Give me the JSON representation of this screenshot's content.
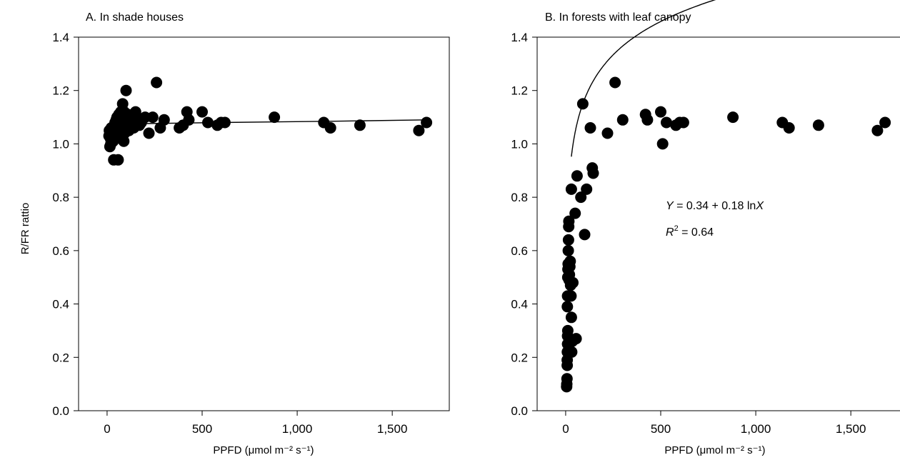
{
  "figure": {
    "ylabel": "R/FR rattio"
  },
  "chart_data": [
    {
      "type": "scatter",
      "title": "A. In shade houses",
      "xlabel": "PPFD (μmol m⁻² s⁻¹)",
      "ylabel": "R/FR rattio",
      "xlim": [
        -150,
        1800
      ],
      "ylim": [
        0,
        1.4
      ],
      "x_ticks": [
        "0",
        "500",
        "1,000",
        "1,500"
      ],
      "y_ticks": [
        "0.0",
        "0.2",
        "0.4",
        "0.6",
        "0.8",
        "1.0",
        "1.2",
        "1.4"
      ],
      "x_tick_values": [
        0,
        500,
        1000,
        1500
      ],
      "y_tick_values": [
        0,
        0.2,
        0.4,
        0.6,
        0.8,
        1.0,
        1.2,
        1.4
      ],
      "grid": false,
      "fit_line": [
        [
          5,
          1.04
        ],
        [
          60,
          1.07
        ],
        [
          200,
          1.076
        ],
        [
          600,
          1.08
        ],
        [
          1200,
          1.085
        ],
        [
          1680,
          1.09
        ]
      ],
      "points": [
        [
          10,
          1.03
        ],
        [
          12,
          1.05
        ],
        [
          15,
          0.99
        ],
        [
          18,
          1.02
        ],
        [
          20,
          1.0
        ],
        [
          22,
          1.06
        ],
        [
          25,
          1.03
        ],
        [
          28,
          1.04
        ],
        [
          30,
          1.05
        ],
        [
          32,
          1.01
        ],
        [
          35,
          0.94
        ],
        [
          38,
          1.07
        ],
        [
          40,
          1.03
        ],
        [
          42,
          1.08
        ],
        [
          45,
          1.02
        ],
        [
          48,
          1.09
        ],
        [
          50,
          1.05
        ],
        [
          52,
          1.1
        ],
        [
          55,
          1.04
        ],
        [
          58,
          0.94
        ],
        [
          60,
          1.06
        ],
        [
          62,
          1.11
        ],
        [
          65,
          1.07
        ],
        [
          68,
          1.03
        ],
        [
          70,
          1.09
        ],
        [
          72,
          1.12
        ],
        [
          75,
          1.05
        ],
        [
          78,
          1.08
        ],
        [
          80,
          1.1
        ],
        [
          82,
          1.15
        ],
        [
          85,
          1.06
        ],
        [
          88,
          1.01
        ],
        [
          90,
          1.12
        ],
        [
          92,
          1.04
        ],
        [
          95,
          1.09
        ],
        [
          100,
          1.2
        ],
        [
          105,
          1.07
        ],
        [
          110,
          1.11
        ],
        [
          115,
          1.05
        ],
        [
          120,
          1.1
        ],
        [
          130,
          1.08
        ],
        [
          140,
          1.06
        ],
        [
          150,
          1.12
        ],
        [
          160,
          1.09
        ],
        [
          170,
          1.07
        ],
        [
          180,
          1.08
        ],
        [
          200,
          1.1
        ],
        [
          220,
          1.04
        ],
        [
          240,
          1.1
        ],
        [
          260,
          1.23
        ],
        [
          280,
          1.06
        ],
        [
          300,
          1.09
        ],
        [
          380,
          1.06
        ],
        [
          400,
          1.07
        ],
        [
          420,
          1.12
        ],
        [
          430,
          1.09
        ],
        [
          500,
          1.12
        ],
        [
          530,
          1.08
        ],
        [
          580,
          1.07
        ],
        [
          600,
          1.08
        ],
        [
          620,
          1.08
        ],
        [
          880,
          1.1
        ],
        [
          1140,
          1.08
        ],
        [
          1175,
          1.06
        ],
        [
          1330,
          1.07
        ],
        [
          1640,
          1.05
        ],
        [
          1680,
          1.08
        ]
      ]
    },
    {
      "type": "scatter",
      "title": "B. In forests with leaf canopy",
      "xlabel": "PPFD (μmol m⁻² s⁻¹)",
      "xlim": [
        -150,
        1800
      ],
      "ylim": [
        0,
        1.4
      ],
      "x_ticks": [
        "0",
        "500",
        "1,000",
        "1,500"
      ],
      "y_ticks": [
        "0.0",
        "0.2",
        "0.4",
        "0.6",
        "0.8",
        "1.0",
        "1.2",
        "1.4"
      ],
      "x_tick_values": [
        0,
        500,
        1000,
        1500
      ],
      "y_tick_values": [
        0,
        0.2,
        0.4,
        0.6,
        0.8,
        1.0,
        1.2,
        1.4
      ],
      "grid": false,
      "equation": {
        "y_var": "Y",
        "y_rest": " = 0.34 + 0.18 ln",
        "x_var": "X",
        "r_var": "R",
        "r_sup": "2",
        "r_rest": " = 0.64"
      },
      "fit": {
        "a": 0.34,
        "b": 0.18,
        "x_range": [
          30,
          1680
        ]
      },
      "points": [
        [
          5,
          0.09
        ],
        [
          6,
          0.1
        ],
        [
          7,
          0.12
        ],
        [
          8,
          0.17
        ],
        [
          8,
          0.19
        ],
        [
          9,
          0.22
        ],
        [
          10,
          0.25
        ],
        [
          10,
          0.28
        ],
        [
          11,
          0.3
        ],
        [
          9,
          0.39
        ],
        [
          10,
          0.43
        ],
        [
          11,
          0.5
        ],
        [
          12,
          0.53
        ],
        [
          13,
          0.55
        ],
        [
          14,
          0.6
        ],
        [
          15,
          0.64
        ],
        [
          16,
          0.69
        ],
        [
          17,
          0.71
        ],
        [
          18,
          0.49
        ],
        [
          20,
          0.51
        ],
        [
          22,
          0.54
        ],
        [
          24,
          0.56
        ],
        [
          26,
          0.47
        ],
        [
          28,
          0.43
        ],
        [
          30,
          0.35
        ],
        [
          32,
          0.22
        ],
        [
          35,
          0.26
        ],
        [
          38,
          0.48
        ],
        [
          30,
          0.83
        ],
        [
          55,
          0.27
        ],
        [
          50,
          0.74
        ],
        [
          60,
          0.88
        ],
        [
          80,
          0.8
        ],
        [
          90,
          1.15
        ],
        [
          100,
          0.66
        ],
        [
          110,
          0.83
        ],
        [
          130,
          1.06
        ],
        [
          140,
          0.91
        ],
        [
          145,
          0.89
        ],
        [
          220,
          1.04
        ],
        [
          260,
          1.23
        ],
        [
          300,
          1.09
        ],
        [
          420,
          1.11
        ],
        [
          430,
          1.09
        ],
        [
          500,
          1.12
        ],
        [
          510,
          1.0
        ],
        [
          530,
          1.08
        ],
        [
          580,
          1.07
        ],
        [
          600,
          1.08
        ],
        [
          620,
          1.08
        ],
        [
          880,
          1.1
        ],
        [
          1140,
          1.08
        ],
        [
          1175,
          1.06
        ],
        [
          1330,
          1.07
        ],
        [
          1640,
          1.05
        ],
        [
          1680,
          1.08
        ]
      ]
    }
  ]
}
